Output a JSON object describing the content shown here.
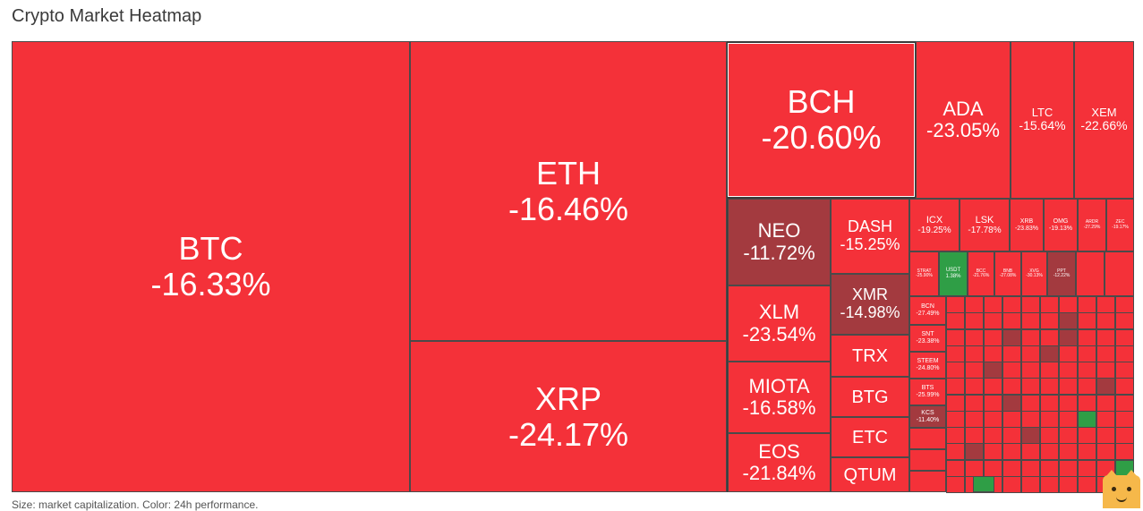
{
  "page": {
    "title": "Crypto Market Heatmap",
    "footer": "Size: market capitalization. Color: 24h performance."
  },
  "colors": {
    "strong_negative": "#f43139",
    "moderate_negative": "#a33a3f",
    "positive": "#2f9e46",
    "border": "#4a4a4a",
    "highlight_border": "#ffffff"
  },
  "chart_data": {
    "type": "heatmap",
    "title": "Crypto Market Heatmap",
    "size_metric": "market capitalization",
    "color_metric": "24h performance",
    "items": [
      {
        "symbol": "BTC",
        "change": "-16.33%"
      },
      {
        "symbol": "ETH",
        "change": "-16.46%"
      },
      {
        "symbol": "XRP",
        "change": "-24.17%"
      },
      {
        "symbol": "BCH",
        "change": "-20.60%"
      },
      {
        "symbol": "ADA",
        "change": "-23.05%"
      },
      {
        "symbol": "LTC",
        "change": "-15.64%"
      },
      {
        "symbol": "XEM",
        "change": "-22.66%"
      },
      {
        "symbol": "NEO",
        "change": "-11.72%"
      },
      {
        "symbol": "DASH",
        "change": "-15.25%"
      },
      {
        "symbol": "XLM",
        "change": "-23.54%"
      },
      {
        "symbol": "XMR",
        "change": "-14.98%"
      },
      {
        "symbol": "TRX",
        "change": ""
      },
      {
        "symbol": "MIOTA",
        "change": "-16.58%"
      },
      {
        "symbol": "BTG",
        "change": ""
      },
      {
        "symbol": "EOS",
        "change": "-21.84%"
      },
      {
        "symbol": "ETC",
        "change": ""
      },
      {
        "symbol": "QTUM",
        "change": ""
      },
      {
        "symbol": "ICX",
        "change": "-19.25%"
      },
      {
        "symbol": "LSK",
        "change": "-17.78%"
      },
      {
        "symbol": "XRB",
        "change": "-23.83%"
      },
      {
        "symbol": "OMG",
        "change": "-19.13%"
      },
      {
        "symbol": "ARDR",
        "change": "-27.29%"
      },
      {
        "symbol": "ZEC",
        "change": "-19.17%"
      },
      {
        "symbol": "STRAT",
        "change": "-25.90%"
      },
      {
        "symbol": "USDT",
        "change": "1.38%"
      },
      {
        "symbol": "BCC",
        "change": "-21.76%"
      },
      {
        "symbol": "BNB",
        "change": "-27.08%"
      },
      {
        "symbol": "XVG",
        "change": "-30.13%"
      },
      {
        "symbol": "PPT",
        "change": "-12.22%"
      },
      {
        "symbol": "BCN",
        "change": "-27.49%"
      },
      {
        "symbol": "SNT",
        "change": "-23.38%"
      },
      {
        "symbol": "STEEM",
        "change": "-24.80%"
      },
      {
        "symbol": "BTS",
        "change": "-25.99%"
      },
      {
        "symbol": "KCS",
        "change": "-11.40%"
      }
    ]
  }
}
